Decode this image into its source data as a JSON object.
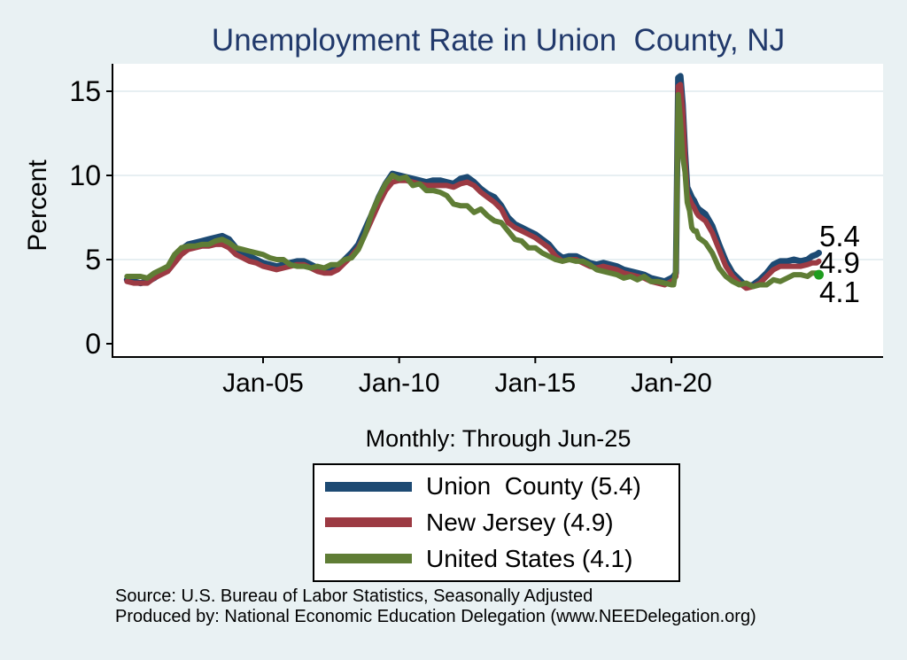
{
  "title": "Unemployment Rate in Union  County, NJ",
  "subtitle": "Monthly: Through Jun-25",
  "footer": {
    "source_line": "Source: U.S. Bureau of Labor Statistics, Seasonally Adjusted",
    "produced_line": "Produced by: National Economic Education Delegation (www.NEEDelegation.org)"
  },
  "chart_data": {
    "type": "line",
    "title": "Unemployment Rate in Union  County, NJ",
    "xlabel": "",
    "ylabel": "Percent",
    "ylim": [
      0,
      16.5
    ],
    "x_range": [
      2000,
      2025.417
    ],
    "grid": "horizontal",
    "legend_position": "below",
    "y_ticks": [
      0,
      5,
      10,
      15
    ],
    "x_ticks": [
      {
        "year": 2005,
        "label": "Jan-05"
      },
      {
        "year": 2010,
        "label": "Jan-10"
      },
      {
        "year": 2015,
        "label": "Jan-15"
      },
      {
        "year": 2020,
        "label": "Jan-20"
      }
    ],
    "end_labels": [
      "5.4",
      "4.9",
      "4.1"
    ],
    "legend_labels": [
      "Union  County (5.4)",
      "New Jersey (4.9)",
      "United States (4.1)"
    ],
    "colors": {
      "union_county": "#1d4a73",
      "new_jersey": "#9c3a43",
      "united_states": "#5f7d35",
      "last_point_marker": "#1f9d1f",
      "title": "#21396b",
      "background": "#e9f1f3",
      "plot_background": "#ffffff",
      "gridline": "#dfeaed"
    },
    "x": [
      2000,
      2000.25,
      2000.5,
      2000.75,
      2001,
      2001.25,
      2001.5,
      2001.75,
      2002,
      2002.25,
      2002.5,
      2002.75,
      2003,
      2003.25,
      2003.5,
      2003.75,
      2004,
      2004.25,
      2004.5,
      2004.75,
      2005,
      2005.25,
      2005.5,
      2005.75,
      2006,
      2006.25,
      2006.5,
      2006.75,
      2007,
      2007.25,
      2007.5,
      2007.75,
      2008,
      2008.25,
      2008.5,
      2008.75,
      2009,
      2009.25,
      2009.5,
      2009.75,
      2010,
      2010.25,
      2010.5,
      2010.75,
      2011,
      2011.25,
      2011.5,
      2011.75,
      2012,
      2012.25,
      2012.5,
      2012.75,
      2013,
      2013.25,
      2013.5,
      2013.75,
      2014,
      2014.25,
      2014.5,
      2014.75,
      2015,
      2015.25,
      2015.5,
      2015.75,
      2016,
      2016.25,
      2016.5,
      2016.75,
      2017,
      2017.25,
      2017.5,
      2017.75,
      2018,
      2018.25,
      2018.5,
      2018.75,
      2019,
      2019.25,
      2019.5,
      2019.75,
      2020,
      2020.083,
      2020.167,
      2020.25,
      2020.333,
      2020.417,
      2020.5,
      2020.583,
      2020.667,
      2020.75,
      2020.833,
      2020.917,
      2021,
      2021.25,
      2021.5,
      2021.75,
      2022,
      2022.25,
      2022.5,
      2022.75,
      2023,
      2023.25,
      2023.5,
      2023.75,
      2024,
      2024.25,
      2024.5,
      2024.75,
      2025,
      2025.167,
      2025.333,
      2025.417
    ],
    "series": [
      {
        "name": "Union County",
        "color": "#1d4a73",
        "stroke_width": 7,
        "final_value": 5.4,
        "values": [
          3.8,
          3.7,
          3.6,
          3.7,
          3.9,
          4.2,
          4.4,
          5.0,
          5.6,
          5.9,
          6.0,
          6.1,
          6.2,
          6.3,
          6.4,
          6.2,
          5.7,
          5.4,
          5.2,
          5.0,
          4.8,
          4.7,
          4.6,
          4.7,
          4.8,
          4.9,
          4.9,
          4.7,
          4.5,
          4.4,
          4.4,
          4.6,
          5.0,
          5.4,
          5.9,
          6.8,
          7.7,
          8.7,
          9.5,
          10.1,
          10.0,
          9.9,
          9.8,
          9.7,
          9.6,
          9.7,
          9.7,
          9.6,
          9.5,
          9.8,
          9.9,
          9.6,
          9.2,
          8.9,
          8.7,
          8.2,
          7.5,
          7.1,
          6.9,
          6.7,
          6.5,
          6.2,
          5.9,
          5.4,
          5.1,
          5.2,
          5.2,
          5.0,
          4.8,
          4.7,
          4.8,
          4.7,
          4.6,
          4.4,
          4.3,
          4.2,
          4.1,
          3.9,
          3.8,
          3.7,
          3.9,
          4.0,
          4.2,
          15.8,
          15.9,
          14.2,
          11.4,
          9.3,
          9.0,
          8.7,
          8.5,
          8.2,
          8.0,
          7.7,
          7.0,
          5.9,
          4.9,
          4.2,
          3.8,
          3.4,
          3.5,
          3.8,
          4.2,
          4.7,
          4.9,
          4.9,
          5.0,
          4.9,
          5.0,
          5.2,
          5.3,
          5.4
        ]
      },
      {
        "name": "New Jersey",
        "color": "#9c3a43",
        "stroke_width": 6,
        "final_value": 4.9,
        "values": [
          3.7,
          3.6,
          3.6,
          3.6,
          3.9,
          4.1,
          4.3,
          4.8,
          5.3,
          5.6,
          5.7,
          5.8,
          5.8,
          5.9,
          5.9,
          5.7,
          5.3,
          5.1,
          4.9,
          4.8,
          4.6,
          4.5,
          4.4,
          4.5,
          4.6,
          4.7,
          4.7,
          4.5,
          4.3,
          4.2,
          4.2,
          4.4,
          4.8,
          5.2,
          5.7,
          6.5,
          7.4,
          8.3,
          9.1,
          9.6,
          9.7,
          9.7,
          9.6,
          9.5,
          9.4,
          9.4,
          9.4,
          9.4,
          9.3,
          9.5,
          9.6,
          9.4,
          9.0,
          8.7,
          8.4,
          8.0,
          7.2,
          6.9,
          6.7,
          6.5,
          6.3,
          6.0,
          5.7,
          5.2,
          4.9,
          5.0,
          5.0,
          4.8,
          4.6,
          4.5,
          4.6,
          4.5,
          4.4,
          4.2,
          4.1,
          4.0,
          3.9,
          3.7,
          3.6,
          3.5,
          3.7,
          3.8,
          4.0,
          15.3,
          15.4,
          13.8,
          11.0,
          8.9,
          8.6,
          8.3,
          8.1,
          7.8,
          7.6,
          7.3,
          6.6,
          5.6,
          4.6,
          4.0,
          3.6,
          3.3,
          3.4,
          3.6,
          4.0,
          4.4,
          4.6,
          4.6,
          4.6,
          4.6,
          4.7,
          4.8,
          4.8,
          4.9
        ]
      },
      {
        "name": "United States",
        "color": "#5f7d35",
        "stroke_width": 6,
        "final_value": 4.1,
        "end_dot_color": "#1f9d1f",
        "values": [
          4.0,
          4.0,
          4.0,
          3.9,
          4.2,
          4.4,
          4.6,
          5.3,
          5.7,
          5.8,
          5.8,
          5.9,
          5.9,
          6.1,
          6.2,
          6.0,
          5.7,
          5.6,
          5.5,
          5.4,
          5.3,
          5.1,
          5.0,
          5.0,
          4.7,
          4.6,
          4.6,
          4.5,
          4.6,
          4.5,
          4.7,
          4.7,
          5.0,
          5.1,
          5.6,
          6.5,
          7.8,
          8.7,
          9.5,
          10.0,
          9.8,
          9.9,
          9.4,
          9.5,
          9.1,
          9.1,
          9.0,
          8.8,
          8.3,
          8.2,
          8.2,
          7.8,
          8.0,
          7.6,
          7.3,
          7.2,
          6.7,
          6.2,
          6.1,
          5.7,
          5.7,
          5.4,
          5.2,
          5.0,
          4.9,
          5.0,
          4.9,
          4.9,
          4.7,
          4.4,
          4.3,
          4.2,
          4.1,
          3.9,
          4.0,
          3.8,
          4.0,
          3.7,
          3.7,
          3.6,
          3.5,
          3.5,
          4.4,
          14.8,
          13.3,
          11.1,
          10.2,
          8.4,
          7.9,
          6.9,
          6.7,
          6.7,
          6.3,
          6.0,
          5.4,
          4.5,
          4.0,
          3.7,
          3.5,
          3.6,
          3.4,
          3.5,
          3.5,
          3.8,
          3.7,
          3.9,
          4.1,
          4.1,
          4.0,
          4.2,
          4.2,
          4.1
        ]
      }
    ]
  }
}
